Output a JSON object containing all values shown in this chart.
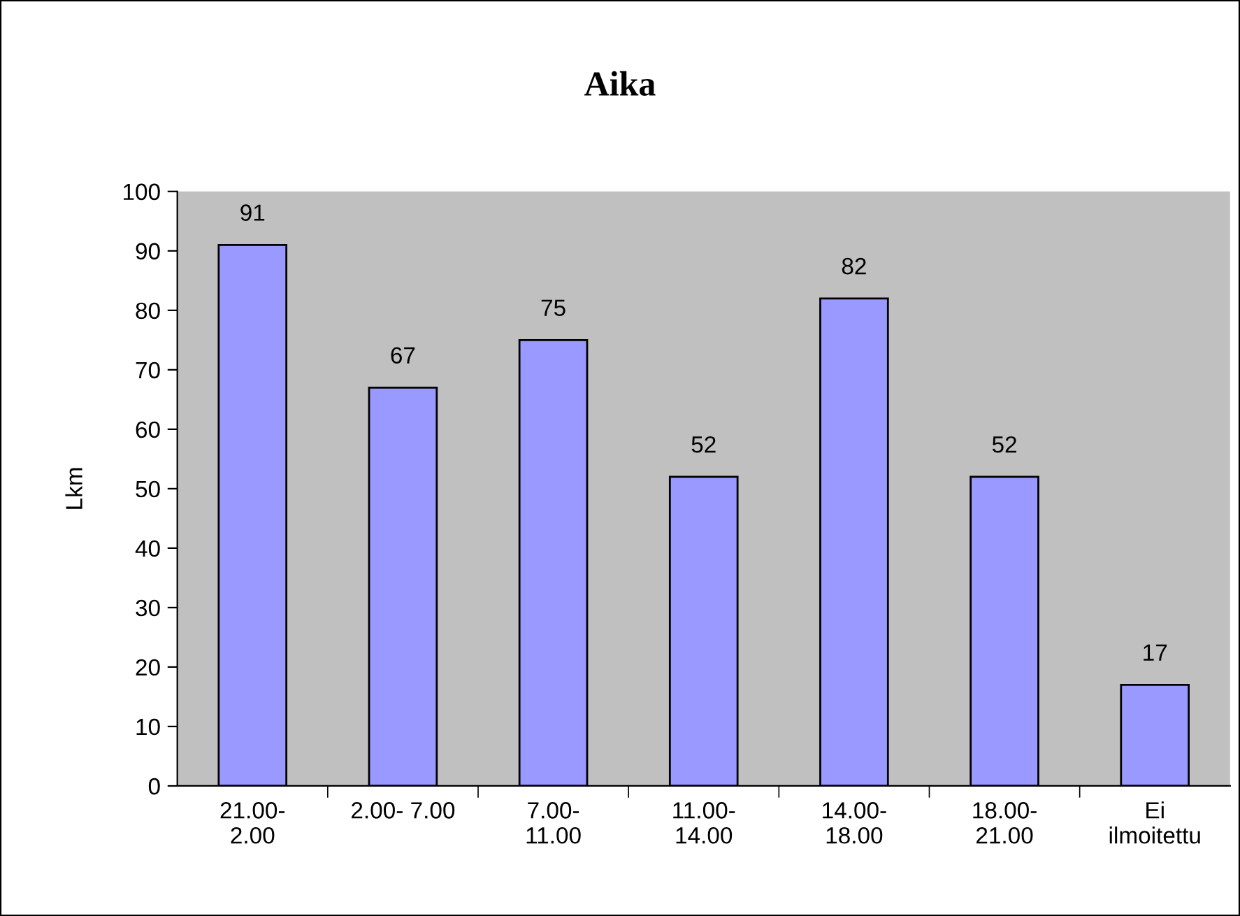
{
  "chart_data": {
    "type": "bar",
    "title": "Aika",
    "ylabel": "Lkm",
    "categories": [
      "21.00-\n2.00",
      "2.00- 7.00",
      "7.00-\n11.00",
      "11.00-\n14.00",
      "14.00-\n18.00",
      "18.00-\n21.00",
      "Ei\nilmoitettu"
    ],
    "values": [
      91,
      67,
      75,
      52,
      82,
      52,
      17
    ],
    "color": "#9999ff",
    "ylim": [
      0,
      100
    ],
    "yticks": [
      0,
      10,
      20,
      30,
      40,
      50,
      60,
      70,
      80,
      90,
      100
    ],
    "data_labels": true
  }
}
